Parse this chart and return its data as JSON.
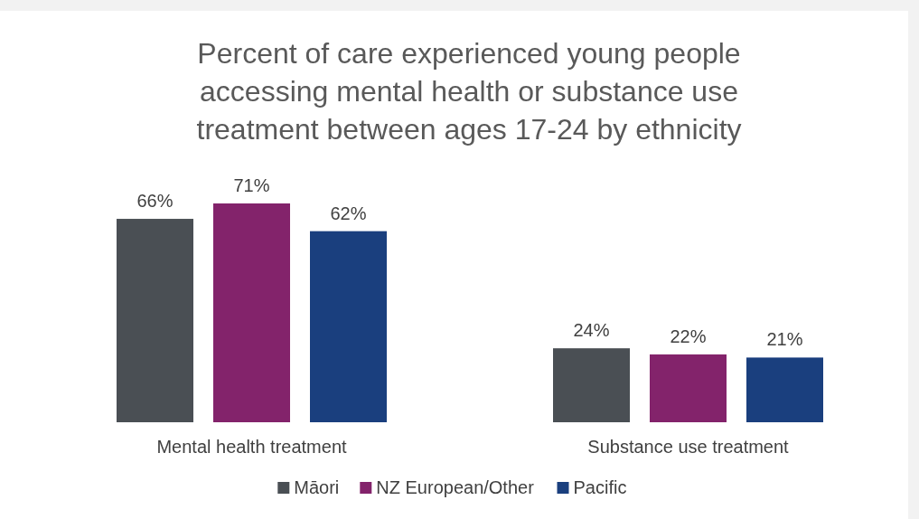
{
  "chart_data": {
    "type": "bar",
    "title": "Percent of care experienced young people\naccessing mental health or substance use\ntreatment between ages 17-24 by ethnicity",
    "categories": [
      "Mental health treatment",
      "Substance use treatment"
    ],
    "series": [
      {
        "name": "Māori",
        "color": "#4a4f54",
        "values": [
          66,
          24
        ],
        "value_labels": [
          "66%",
          "24%"
        ]
      },
      {
        "name": "NZ European/Other",
        "color": "#83236b",
        "values": [
          71,
          22
        ],
        "value_labels": [
          "71%",
          "22%"
        ]
      },
      {
        "name": "Pacific",
        "color": "#1a3f7e",
        "values": [
          62,
          21
        ],
        "value_labels": [
          "62%",
          "21%"
        ]
      }
    ],
    "legend": "bottom"
  }
}
